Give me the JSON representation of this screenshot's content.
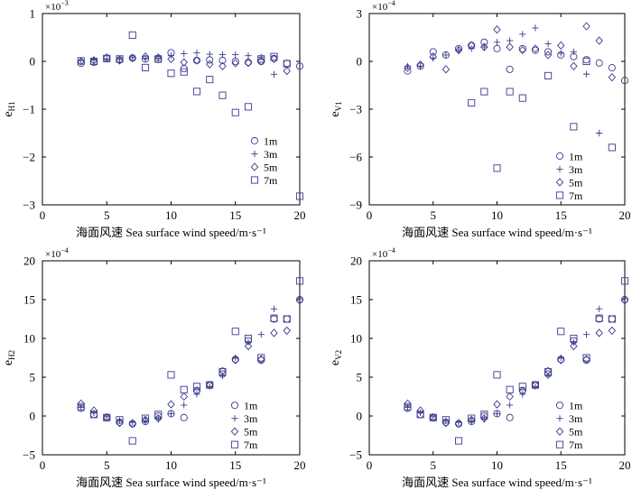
{
  "chart_data": [
    {
      "type": "scatter",
      "panel": "top-left",
      "xlabel": "海面风速 Sea surface wind speed/m·s⁻¹",
      "ylabel": "e",
      "ylabel_sub": "H1",
      "multiplier_base": "×10",
      "multiplier_exp": "−3",
      "xlim": [
        0,
        20
      ],
      "ylim": [
        -3,
        1
      ],
      "xticks": [
        "0",
        "5",
        "10",
        "15",
        "20"
      ],
      "yticks": [
        "−3",
        "−2",
        "−1",
        "0",
        "1"
      ],
      "legend_position": "right-middle",
      "series": [
        {
          "name": "1m",
          "marker": "circle",
          "x": [
            3,
            4,
            5,
            6,
            7,
            8,
            9,
            10,
            11,
            12,
            13,
            14,
            15,
            16,
            17,
            18,
            19,
            20
          ],
          "y": [
            -0.04,
            -0.02,
            0.06,
            0.03,
            0.07,
            0.05,
            0.04,
            0.18,
            -0.15,
            0.02,
            0.03,
            0.02,
            0.0,
            -0.02,
            0.0,
            0.06,
            -0.04,
            -0.1
          ]
        },
        {
          "name": "3m",
          "marker": "plus",
          "x": [
            3,
            4,
            5,
            6,
            7,
            8,
            9,
            10,
            11,
            12,
            13,
            14,
            15,
            16,
            17,
            18
          ],
          "y": [
            0.02,
            0.03,
            0.05,
            0.04,
            0.08,
            0.06,
            0.07,
            0.12,
            0.16,
            0.18,
            0.15,
            0.14,
            0.14,
            0.12,
            0.09,
            -0.27
          ]
        },
        {
          "name": "5m",
          "marker": "diamond",
          "x": [
            3,
            4,
            5,
            6,
            7,
            8,
            9,
            10,
            11,
            12,
            13,
            14,
            15,
            16,
            17,
            18,
            19
          ],
          "y": [
            0.0,
            0.02,
            0.08,
            0.02,
            0.07,
            0.1,
            0.08,
            0.05,
            -0.02,
            0.02,
            -0.06,
            -0.1,
            -0.04,
            -0.03,
            0.0,
            0.05,
            -0.2
          ]
        },
        {
          "name": "7m",
          "marker": "square",
          "x": [
            3,
            4,
            5,
            6,
            7,
            8,
            9,
            10,
            11,
            12,
            13,
            14,
            15,
            16,
            17,
            18,
            19,
            20
          ],
          "y": [
            0.01,
            0.0,
            0.06,
            0.05,
            0.55,
            -0.13,
            0.05,
            -0.25,
            -0.22,
            -0.63,
            -0.38,
            -0.71,
            -1.07,
            -0.95,
            0.05,
            0.1,
            -0.05,
            -2.82
          ]
        }
      ],
      "legend": [
        "1m",
        "3m",
        "5m",
        "7m"
      ]
    },
    {
      "type": "scatter",
      "panel": "top-right",
      "xlabel": "海面风速 Sea surface wind speed/m·s⁻¹",
      "ylabel": "e",
      "ylabel_sub": "V1",
      "multiplier_base": "×10",
      "multiplier_exp": "−4",
      "xlim": [
        0,
        20
      ],
      "ylim": [
        -9,
        3
      ],
      "xticks": [
        "0",
        "5",
        "10",
        "15",
        "20"
      ],
      "yticks": [
        "−9",
        "−6",
        "−3",
        "0",
        "3"
      ],
      "legend_position": "right-bottom",
      "series": [
        {
          "name": "1m",
          "marker": "circle",
          "x": [
            3,
            4,
            5,
            6,
            7,
            8,
            9,
            10,
            11,
            12,
            13,
            14,
            15,
            16,
            17,
            18,
            19,
            20
          ],
          "y": [
            -0.6,
            -0.3,
            0.6,
            0.4,
            0.8,
            1.0,
            1.2,
            0.8,
            -0.5,
            0.8,
            0.7,
            0.6,
            0.4,
            0.3,
            0.1,
            -0.1,
            -0.4,
            -1.2
          ]
        },
        {
          "name": "3m",
          "marker": "plus",
          "x": [
            3,
            4,
            5,
            6,
            7,
            8,
            9,
            10,
            11,
            12,
            13,
            14,
            15,
            16,
            17,
            18
          ],
          "y": [
            -0.3,
            -0.3,
            0.2,
            0.4,
            0.7,
            0.8,
            0.9,
            1.2,
            1.3,
            1.7,
            2.1,
            1.1,
            0.5,
            0.6,
            -0.8,
            -4.5
          ]
        },
        {
          "name": "5m",
          "marker": "diamond",
          "x": [
            3,
            4,
            5,
            6,
            7,
            8,
            9,
            10,
            11,
            12,
            13,
            14,
            15,
            16,
            17,
            18,
            19
          ],
          "y": [
            -0.4,
            -0.2,
            0.3,
            -0.5,
            0.7,
            1.0,
            0.9,
            2.0,
            0.9,
            0.7,
            0.8,
            0.4,
            1.0,
            -0.3,
            2.2,
            1.3,
            -1.0
          ]
        },
        {
          "name": "7m",
          "marker": "square",
          "x": [
            8,
            9,
            10,
            11,
            12,
            14,
            16,
            17,
            19
          ],
          "y": [
            -2.6,
            -1.9,
            -6.7,
            -1.9,
            -2.3,
            -0.9,
            -4.1,
            0.0,
            -5.4
          ]
        }
      ],
      "legend": [
        "1m",
        "3m",
        "5m",
        "7m"
      ]
    },
    {
      "type": "scatter",
      "panel": "bottom-left",
      "xlabel": "海面风速 Sea surface wind speed/m·s⁻¹",
      "ylabel": "e",
      "ylabel_sub": "H2",
      "multiplier_base": "×10",
      "multiplier_exp": "−4",
      "xlim": [
        0,
        20
      ],
      "ylim": [
        -5,
        20
      ],
      "xticks": [
        "0",
        "5",
        "10",
        "15",
        "20"
      ],
      "yticks": [
        "−5",
        "0",
        "5",
        "10",
        "15",
        "20"
      ],
      "legend_position": "right-bottom",
      "series": [
        {
          "name": "1m",
          "marker": "circle",
          "x": [
            3,
            4,
            5,
            6,
            7,
            8,
            9,
            10,
            11,
            12,
            13,
            14,
            15,
            16,
            17,
            18,
            19,
            20
          ],
          "y": [
            1.0,
            0.2,
            -0.2,
            -0.8,
            -1.0,
            -0.7,
            0.0,
            0.3,
            -0.2,
            3.3,
            4.0,
            5.4,
            7.3,
            9.7,
            7.2,
            12.5,
            12.5,
            15.0
          ]
        },
        {
          "name": "3m",
          "marker": "plus",
          "x": [
            3,
            4,
            5,
            6,
            7,
            8,
            9,
            10,
            11,
            12,
            13,
            14,
            15,
            16,
            17,
            18
          ],
          "y": [
            1.1,
            0.4,
            -0.1,
            -0.6,
            -0.8,
            -0.6,
            -0.4,
            0.3,
            1.4,
            2.8,
            3.8,
            5.2,
            7.5,
            9.5,
            10.5,
            13.8
          ]
        },
        {
          "name": "5m",
          "marker": "diamond",
          "x": [
            3,
            4,
            5,
            6,
            7,
            8,
            9,
            10,
            11,
            12,
            13,
            14,
            15,
            16,
            17,
            18,
            19,
            20
          ],
          "y": [
            1.6,
            0.7,
            -0.2,
            -0.9,
            -1.0,
            -0.5,
            -0.3,
            1.5,
            2.5,
            3.2,
            4.0,
            5.8,
            7.2,
            9.0,
            7.3,
            10.7,
            11.0,
            14.9
          ]
        },
        {
          "name": "7m",
          "marker": "square",
          "x": [
            3,
            4,
            5,
            6,
            7,
            8,
            9,
            10,
            11,
            12,
            13,
            14,
            15,
            16,
            17,
            18,
            19,
            20
          ],
          "y": [
            1.2,
            0.2,
            -0.2,
            -0.5,
            -3.2,
            -0.3,
            0.2,
            5.3,
            3.4,
            3.8,
            4.0,
            5.7,
            10.9,
            10.0,
            7.5,
            12.6,
            12.5,
            17.4
          ]
        }
      ],
      "legend": [
        "1m",
        "3m",
        "5m",
        "7m"
      ]
    },
    {
      "type": "scatter",
      "panel": "bottom-right",
      "xlabel": "海面风速 Sea surface wind speed/m·s⁻¹",
      "ylabel": "e",
      "ylabel_sub": "V2",
      "multiplier_base": "×10",
      "multiplier_exp": "−4",
      "xlim": [
        0,
        20
      ],
      "ylim": [
        -5,
        20
      ],
      "xticks": [
        "0",
        "5",
        "10",
        "15",
        "20"
      ],
      "yticks": [
        "−5",
        "0",
        "5",
        "10",
        "15",
        "20"
      ],
      "legend_position": "right-bottom",
      "series": [
        {
          "name": "1m",
          "marker": "circle",
          "x": [
            3,
            4,
            5,
            6,
            7,
            8,
            9,
            10,
            11,
            12,
            13,
            14,
            15,
            16,
            17,
            18,
            19,
            20
          ],
          "y": [
            1.0,
            0.2,
            -0.2,
            -0.8,
            -1.0,
            -0.7,
            0.0,
            0.3,
            -0.2,
            3.3,
            4.0,
            5.4,
            7.3,
            9.7,
            7.2,
            12.5,
            12.5,
            15.0
          ]
        },
        {
          "name": "3m",
          "marker": "plus",
          "x": [
            3,
            4,
            5,
            6,
            7,
            8,
            9,
            10,
            11,
            12,
            13,
            14,
            15,
            16,
            17,
            18
          ],
          "y": [
            1.1,
            0.4,
            -0.1,
            -0.6,
            -0.8,
            -0.6,
            -0.4,
            0.3,
            1.4,
            2.8,
            3.8,
            5.2,
            7.5,
            9.5,
            10.5,
            13.8
          ]
        },
        {
          "name": "5m",
          "marker": "diamond",
          "x": [
            3,
            4,
            5,
            6,
            7,
            8,
            9,
            10,
            11,
            12,
            13,
            14,
            15,
            16,
            17,
            18,
            19,
            20
          ],
          "y": [
            1.6,
            0.7,
            -0.2,
            -0.9,
            -1.0,
            -0.5,
            -0.3,
            1.5,
            2.5,
            3.2,
            4.0,
            5.8,
            7.2,
            9.0,
            7.3,
            10.7,
            11.0,
            14.9
          ]
        },
        {
          "name": "7m",
          "marker": "square",
          "x": [
            3,
            4,
            5,
            6,
            7,
            8,
            9,
            10,
            11,
            12,
            13,
            14,
            15,
            16,
            17,
            18,
            19,
            20
          ],
          "y": [
            1.2,
            0.2,
            -0.2,
            -0.5,
            -3.2,
            -0.3,
            0.2,
            5.3,
            3.4,
            3.8,
            4.0,
            5.7,
            10.9,
            10.0,
            7.5,
            12.6,
            12.5,
            17.4
          ]
        }
      ],
      "legend": [
        "1m",
        "3m",
        "5m",
        "7m"
      ]
    }
  ]
}
